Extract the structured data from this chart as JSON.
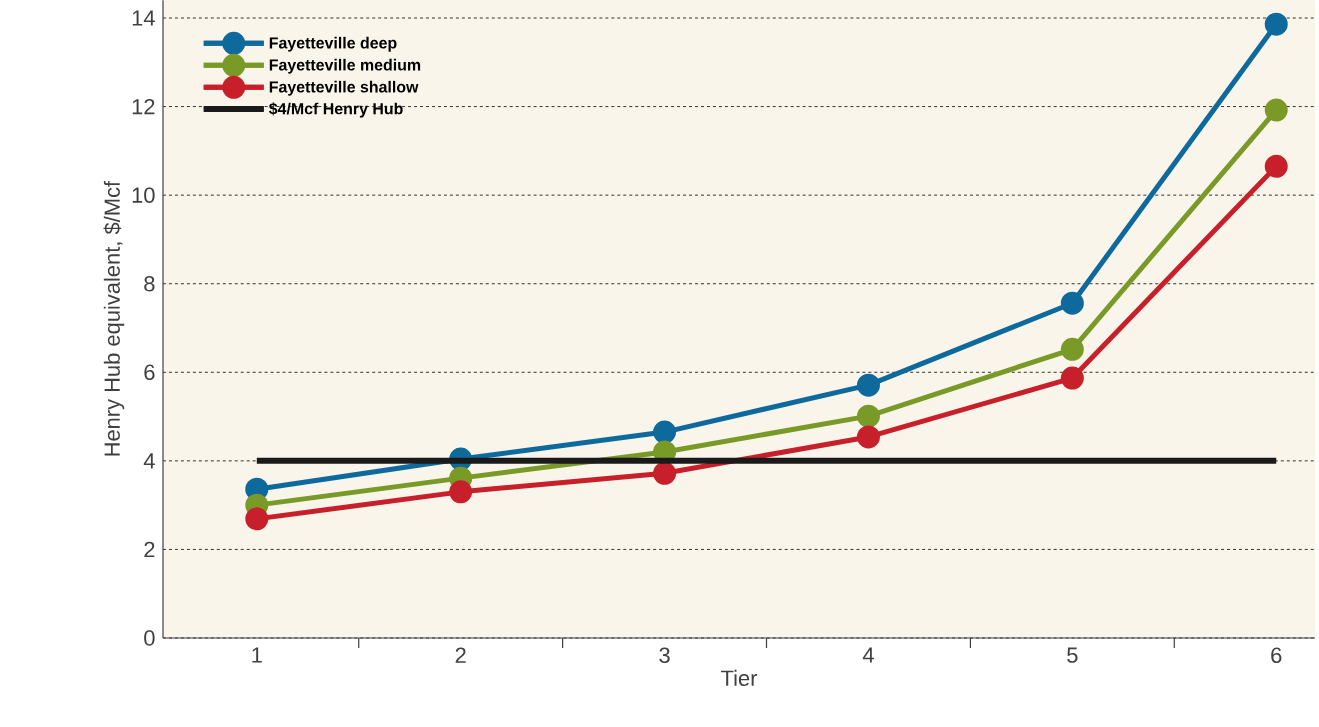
{
  "chart_data": {
    "type": "line",
    "xlabel": "Tier",
    "ylabel": "Henry Hub equivalent, $/Mcf",
    "categories": [
      "1",
      "2",
      "3",
      "4",
      "5",
      "6"
    ],
    "series": [
      {
        "name": "Fayetteville deep",
        "color": "#0e6a9c",
        "values": [
          3.36,
          4.04,
          4.65,
          5.71,
          7.56,
          13.86
        ]
      },
      {
        "name": "Fayetteville medium",
        "color": "#7a9a28",
        "values": [
          3.0,
          3.61,
          4.2,
          5.01,
          6.52,
          11.92
        ]
      },
      {
        "name": "Fayetteville shallow",
        "color": "#c8202a",
        "values": [
          2.69,
          3.3,
          3.72,
          4.54,
          5.87,
          10.65
        ]
      },
      {
        "name": "$4/Mcf Henry Hub",
        "color": "#1a1a1a",
        "marker": "none",
        "values": [
          4,
          4,
          4,
          4,
          4,
          4
        ]
      }
    ],
    "ylim": [
      0,
      14.4
    ],
    "yticks": [
      0,
      2,
      4,
      6,
      8,
      10,
      12,
      14
    ],
    "grid": "y",
    "legend": "top left",
    "marker": "circle",
    "line_style": "solid"
  }
}
